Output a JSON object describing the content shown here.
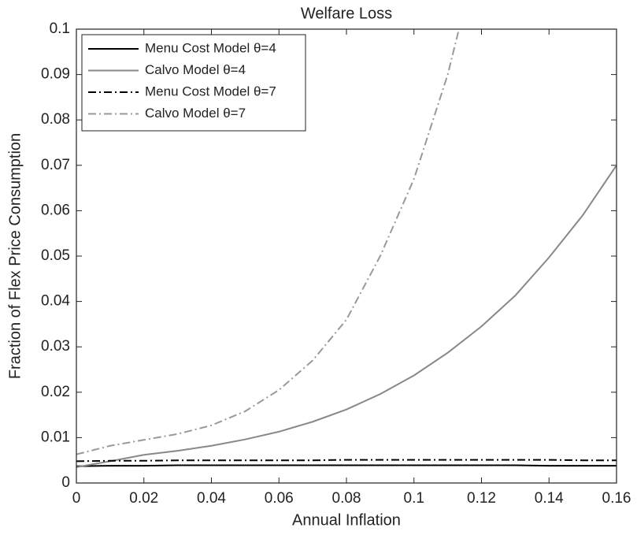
{
  "chart_data": {
    "type": "line",
    "title": "Welfare Loss",
    "x_label": "Annual Inflation",
    "y_label": "Fraction of Flex Price Consumption",
    "x": [
      0,
      0.01,
      0.02,
      0.03,
      0.04,
      0.05,
      0.06,
      0.07,
      0.08,
      0.09,
      0.1,
      0.11,
      0.12,
      0.13,
      0.14,
      0.15,
      0.16
    ],
    "series": [
      {
        "name": "Menu Cost Model θ=4",
        "color": "#000000",
        "linestyle": "solid",
        "values": [
          0.0037,
          0.0038,
          0.0038,
          0.0039,
          0.0039,
          0.0039,
          0.0039,
          0.0039,
          0.0039,
          0.0039,
          0.0039,
          0.0039,
          0.0039,
          0.0039,
          0.0038,
          0.0038,
          0.0038
        ]
      },
      {
        "name": "Calvo Model θ=4",
        "color": "#888888",
        "linestyle": "solid",
        "values": [
          0.0035,
          0.0048,
          0.0062,
          0.0071,
          0.0082,
          0.0096,
          0.0113,
          0.0135,
          0.0162,
          0.0196,
          0.0237,
          0.0287,
          0.0345,
          0.0413,
          0.0497,
          0.059,
          0.07
        ]
      },
      {
        "name": "Menu Cost Model θ=7",
        "color": "#000000",
        "linestyle": "dashdot",
        "values": [
          0.0048,
          0.0049,
          0.0049,
          0.005,
          0.005,
          0.005,
          0.005,
          0.005,
          0.0051,
          0.0051,
          0.0051,
          0.0051,
          0.0051,
          0.0051,
          0.0051,
          0.005,
          0.005
        ]
      },
      {
        "name": "Calvo Model θ=7",
        "color": "#999999",
        "linestyle": "dashdot",
        "values": [
          0.0063,
          0.0082,
          0.0095,
          0.0108,
          0.0127,
          0.0158,
          0.0205,
          0.027,
          0.036,
          0.05,
          0.067,
          0.09,
          0.12,
          null,
          null,
          null,
          null
        ]
      }
    ],
    "xlim": [
      0,
      0.16
    ],
    "ylim": [
      0,
      0.1
    ],
    "xticks": [
      0,
      0.02,
      0.04,
      0.06,
      0.08,
      0.1,
      0.12,
      0.14,
      0.16
    ],
    "yticks": [
      0,
      0.01,
      0.02,
      0.03,
      0.04,
      0.05,
      0.06,
      0.07,
      0.08,
      0.09,
      0.1
    ],
    "legend": "upper left"
  }
}
